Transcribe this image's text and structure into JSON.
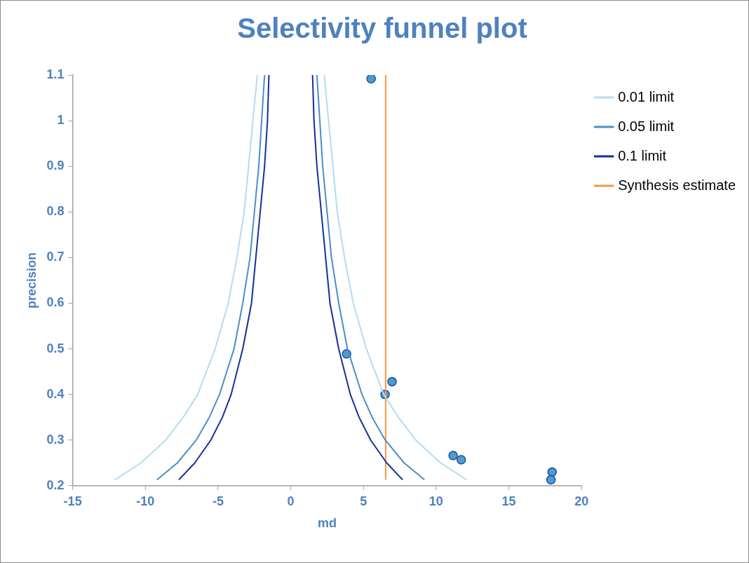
{
  "chart_data": {
    "type": "scatter",
    "title": "Selectivity funnel plot",
    "xlabel": "md",
    "ylabel": "precision",
    "xlim": [
      -15,
      20
    ],
    "xticks": [
      -15,
      -10,
      -5,
      0,
      5,
      10,
      15,
      20
    ],
    "ylim": [
      0.2,
      1.1
    ],
    "yticks": [
      0.2,
      0.3,
      0.4,
      0.5,
      0.6,
      0.7,
      0.8,
      0.9,
      1,
      1.1
    ],
    "grid": false,
    "legend": "top right",
    "series": [
      {
        "name": "0.01 limit",
        "type": "line",
        "marker": "none",
        "color": "#b3dcf2",
        "x": [
          -12.1,
          -10.3,
          -8.6,
          -7.4,
          -6.4,
          -5.2,
          -4.3,
          -3.7,
          -3.2,
          -2.9,
          -2.6,
          -2.3,
          null,
          2.3,
          2.6,
          2.9,
          3.2,
          3.7,
          4.3,
          5.2,
          6.4,
          7.4,
          8.6,
          10.3,
          12.1
        ],
        "values": [
          0.213,
          0.25,
          0.3,
          0.35,
          0.4,
          0.5,
          0.6,
          0.7,
          0.8,
          0.9,
          1.0,
          1.1,
          null,
          1.1,
          1.0,
          0.9,
          0.8,
          0.7,
          0.6,
          0.5,
          0.4,
          0.35,
          0.3,
          0.25,
          0.213
        ]
      },
      {
        "name": "0.05 limit",
        "type": "line",
        "marker": "none",
        "color": "#4a8fc4",
        "x": [
          -9.2,
          -7.8,
          -6.5,
          -5.6,
          -4.9,
          -3.9,
          -3.3,
          -2.8,
          -2.5,
          -2.2,
          -2.0,
          -1.8,
          null,
          1.8,
          2.0,
          2.2,
          2.5,
          2.8,
          3.3,
          3.9,
          4.9,
          5.6,
          6.5,
          7.8,
          9.2
        ],
        "values": [
          0.213,
          0.25,
          0.3,
          0.35,
          0.4,
          0.5,
          0.6,
          0.7,
          0.8,
          0.9,
          1.0,
          1.1,
          null,
          1.1,
          1.0,
          0.9,
          0.8,
          0.7,
          0.6,
          0.5,
          0.4,
          0.35,
          0.3,
          0.25,
          0.213
        ]
      },
      {
        "name": "0.1 limit",
        "type": "line",
        "marker": "none",
        "color": "#12309a",
        "x": [
          -7.7,
          -6.6,
          -5.5,
          -4.7,
          -4.1,
          -3.3,
          -2.7,
          -2.4,
          -2.1,
          -1.8,
          -1.6,
          -1.5,
          null,
          1.5,
          1.6,
          1.8,
          2.1,
          2.4,
          2.7,
          3.3,
          4.1,
          4.7,
          5.5,
          6.6,
          7.7
        ],
        "values": [
          0.213,
          0.25,
          0.3,
          0.35,
          0.4,
          0.5,
          0.6,
          0.7,
          0.8,
          0.9,
          1.0,
          1.1,
          null,
          1.1,
          1.0,
          0.9,
          0.8,
          0.7,
          0.6,
          0.5,
          0.4,
          0.35,
          0.3,
          0.25,
          0.213
        ]
      },
      {
        "name": "Synthesis estimate",
        "type": "line",
        "marker": "none",
        "color": "#f79646",
        "x": [
          6.53,
          6.53
        ],
        "values": [
          0.213,
          1.1
        ]
      },
      {
        "type": "scatter",
        "marker": "circle",
        "color": "#4f9ad2",
        "x": [
          5.53,
          3.84,
          6.97,
          6.49,
          11.17,
          11.73,
          17.98,
          17.9
        ],
        "values": [
          1.092,
          0.489,
          0.428,
          0.4,
          0.266,
          0.257,
          0.23,
          0.213
        ]
      }
    ]
  }
}
